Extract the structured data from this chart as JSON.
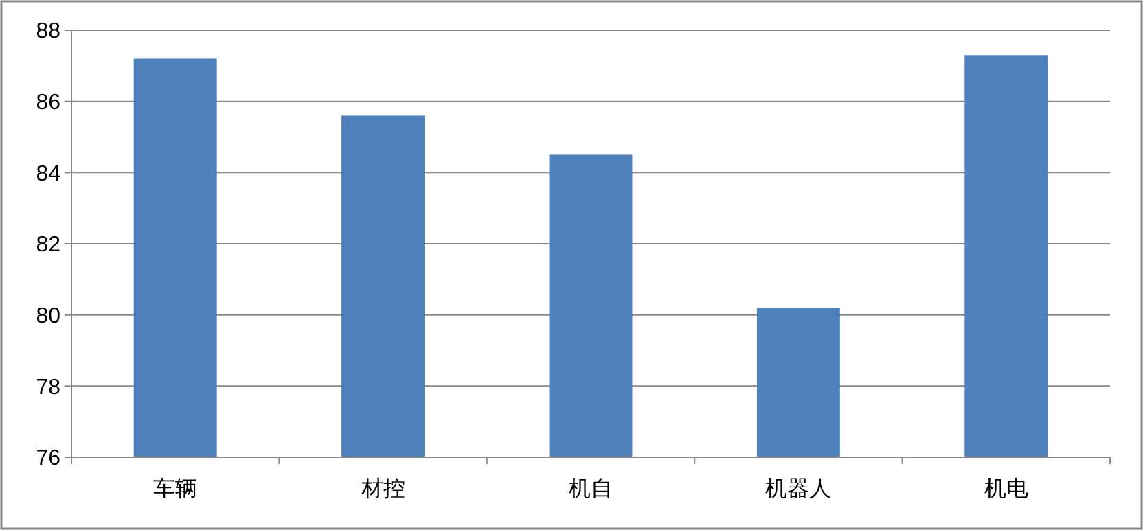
{
  "chart_data": {
    "type": "bar",
    "categories": [
      "车辆",
      "材控",
      "机自",
      "机器人",
      "机电"
    ],
    "values": [
      87.2,
      85.6,
      84.5,
      80.2,
      87.3
    ],
    "color": "#4f81bd",
    "ylim": [
      76,
      88
    ],
    "yticks": [
      76,
      78,
      80,
      82,
      84,
      86,
      88
    ],
    "grid": "y"
  }
}
